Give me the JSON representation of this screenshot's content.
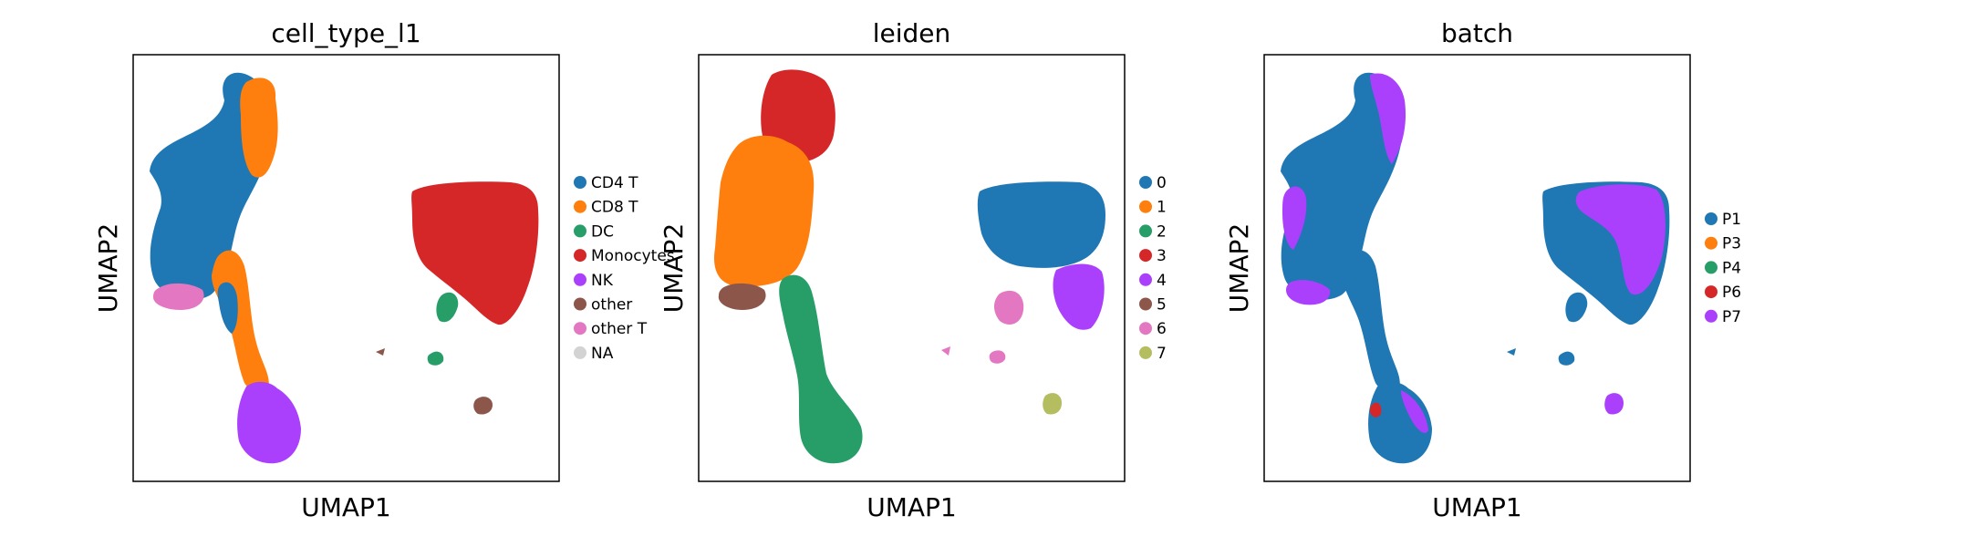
{
  "chart_data": [
    {
      "type": "scatter",
      "title": "cell_type_l1",
      "xlabel": "UMAP1",
      "ylabel": "UMAP2",
      "legend_position": "right",
      "grid": false,
      "ticks": false,
      "categories": [
        {
          "name": "CD4 T",
          "color": "#1f77b4"
        },
        {
          "name": "CD8 T",
          "color": "#ff7f0e"
        },
        {
          "name": "DC",
          "color": "#279e68"
        },
        {
          "name": "Monocytes",
          "color": "#d62728"
        },
        {
          "name": "NK",
          "color": "#aa40fc"
        },
        {
          "name": "other",
          "color": "#8c564b"
        },
        {
          "name": "other T",
          "color": "#e377c2"
        },
        {
          "name": "NA",
          "color": "#d3d3d3"
        }
      ]
    },
    {
      "type": "scatter",
      "title": "leiden",
      "xlabel": "UMAP1",
      "ylabel": "UMAP2",
      "legend_position": "right",
      "grid": false,
      "ticks": false,
      "categories": [
        {
          "name": "0",
          "color": "#1f77b4"
        },
        {
          "name": "1",
          "color": "#ff7f0e"
        },
        {
          "name": "2",
          "color": "#279e68"
        },
        {
          "name": "3",
          "color": "#d62728"
        },
        {
          "name": "4",
          "color": "#aa40fc"
        },
        {
          "name": "5",
          "color": "#8c564b"
        },
        {
          "name": "6",
          "color": "#e377c2"
        },
        {
          "name": "7",
          "color": "#b5bd61"
        }
      ]
    },
    {
      "type": "scatter",
      "title": "batch",
      "xlabel": "UMAP1",
      "ylabel": "UMAP2",
      "legend_position": "right",
      "grid": false,
      "ticks": false,
      "categories": [
        {
          "name": "P1",
          "color": "#1f77b4"
        },
        {
          "name": "P3",
          "color": "#ff7f0e"
        },
        {
          "name": "P4",
          "color": "#279e68"
        },
        {
          "name": "P6",
          "color": "#d62728"
        },
        {
          "name": "P7",
          "color": "#aa40fc"
        }
      ]
    }
  ]
}
